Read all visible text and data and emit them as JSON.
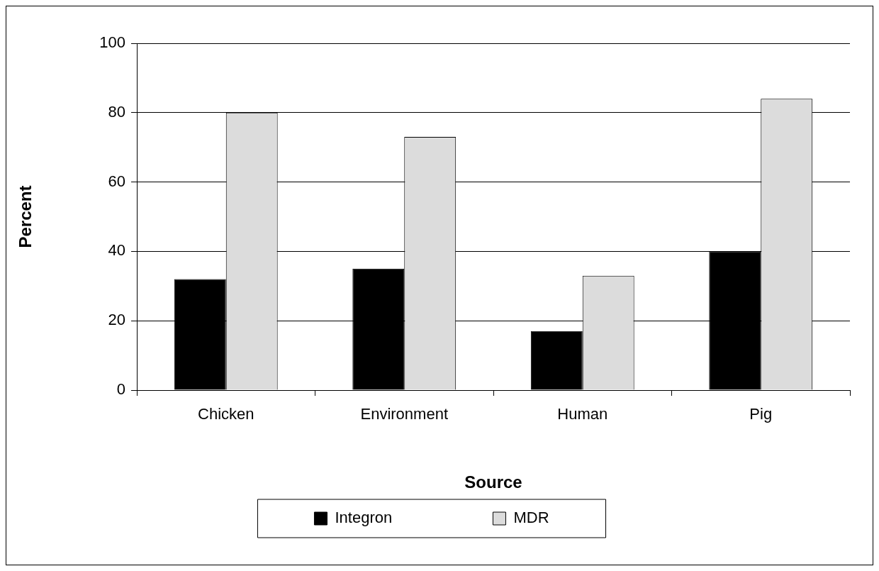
{
  "chart_data": {
    "type": "bar",
    "xlabel": "Source",
    "ylabel": "Percent",
    "categories": [
      "Chicken",
      "Environment",
      "Human",
      "Pig"
    ],
    "series": [
      {
        "name": "Integron",
        "color": "#000000",
        "values": [
          32,
          35,
          17,
          40
        ]
      },
      {
        "name": "MDR",
        "color": "#dcdcdc",
        "values": [
          80,
          73,
          33,
          84
        ]
      }
    ],
    "ylim": [
      0,
      100
    ],
    "yticks": [
      0,
      20,
      40,
      60,
      80,
      100
    ],
    "grid": "y",
    "legend": "bottom"
  }
}
